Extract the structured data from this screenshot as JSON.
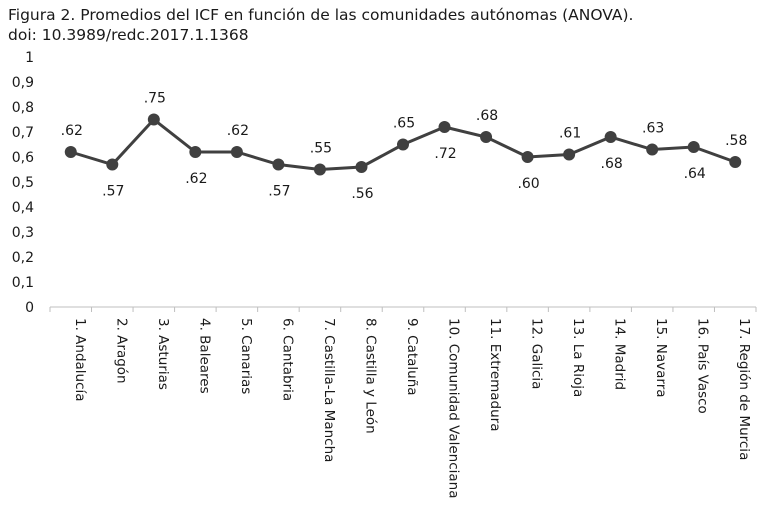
{
  "caption": {
    "line1": "Figura 2. Promedios del ICF en función de las comunidades autónomas (ANOVA).",
    "line2": "doi: 10.3989/redc.2017.1.1368"
  },
  "chart_data": {
    "type": "line",
    "title": "",
    "xlabel": "",
    "ylabel": "",
    "ylim": [
      0,
      1
    ],
    "yticks": [
      "0",
      "0,1",
      "0,2",
      "0,3",
      "0,4",
      "0,5",
      "0,6",
      "0,7",
      "0,8",
      "0,9",
      "1"
    ],
    "grid": false,
    "categories": [
      "1. Andalucía",
      "2. Aragón",
      "3. Asturias",
      "4. Baleares",
      "5. Canarias",
      "6. Cantabria",
      "7. Castilla-La Mancha",
      "8. Castilla y León",
      "9. Cataluña",
      "10. Comunidad Valenciana",
      "11. Extremadura",
      "12. Galicia",
      "13. La Rioja",
      "14. Madrid",
      "15. Navarra",
      "16. País Vasco",
      "17. Región de Murcia"
    ],
    "series": [
      {
        "values": [
          0.62,
          0.57,
          0.75,
          0.62,
          0.62,
          0.57,
          0.55,
          0.56,
          0.65,
          0.72,
          0.68,
          0.6,
          0.61,
          0.68,
          0.63,
          0.64,
          0.58
        ],
        "labels": [
          ".62",
          ".57",
          ".75",
          ".62",
          ".62",
          ".57",
          ".55",
          ".56",
          ".65",
          ".72",
          ".68",
          ".60",
          ".61",
          ".68",
          ".63",
          ".64",
          ".58"
        ],
        "label_pos": [
          "above",
          "below",
          "above",
          "below",
          "above",
          "below",
          "above",
          "below",
          "above",
          "below",
          "above",
          "below",
          "above",
          "below",
          "above",
          "below",
          "above"
        ],
        "color": "#404040"
      }
    ]
  }
}
